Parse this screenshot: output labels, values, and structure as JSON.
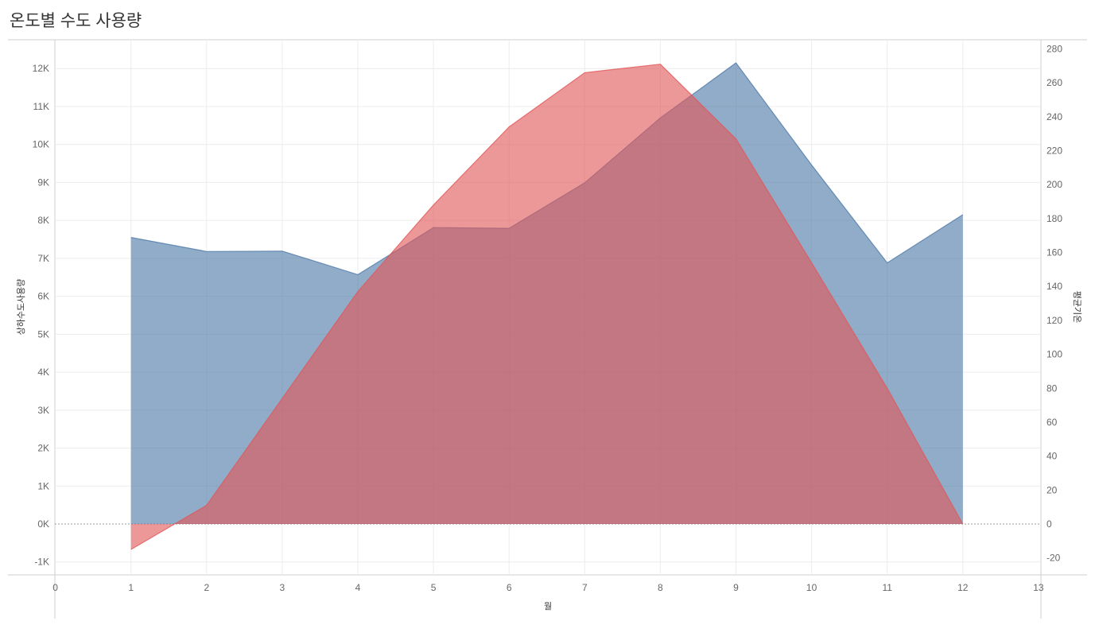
{
  "title": "온도별 수도 사용량",
  "colors": {
    "usage": "#4e79a7",
    "temp": "#e15759"
  },
  "chart_data": {
    "type": "area",
    "title": "온도별 수도 사용량",
    "xlabel": "월",
    "ylabel_left": "상하수도사용량",
    "ylabel_right": "평균기온",
    "xlim": [
      0,
      13
    ],
    "ylim_left": [
      -1000,
      12000
    ],
    "ylim_right": [
      -20,
      280
    ],
    "x_ticks": [
      0,
      1,
      2,
      3,
      4,
      5,
      6,
      7,
      8,
      9,
      10,
      11,
      12,
      13
    ],
    "y_left_ticks": [
      "-1K",
      "0K",
      "1K",
      "2K",
      "3K",
      "4K",
      "5K",
      "6K",
      "7K",
      "8K",
      "9K",
      "10K",
      "11K",
      "12K"
    ],
    "y_right_ticks": [
      "-20",
      "0",
      "20",
      "40",
      "60",
      "80",
      "100",
      "120",
      "140",
      "160",
      "180",
      "200",
      "220",
      "240",
      "260",
      "280"
    ],
    "grid": true,
    "x": [
      1,
      2,
      3,
      4,
      5,
      6,
      7,
      8,
      9,
      10,
      11,
      12
    ],
    "series": [
      {
        "name": "상하수도사용량",
        "axis": "left",
        "values": [
          7550,
          7180,
          7190,
          6570,
          7810,
          7790,
          8990,
          10700,
          12150,
          9460,
          6880,
          8150
        ]
      },
      {
        "name": "평균기온",
        "axis": "right",
        "values": [
          -15,
          11,
          74,
          137,
          188,
          234,
          266,
          271,
          227,
          154,
          80,
          0
        ]
      }
    ]
  }
}
